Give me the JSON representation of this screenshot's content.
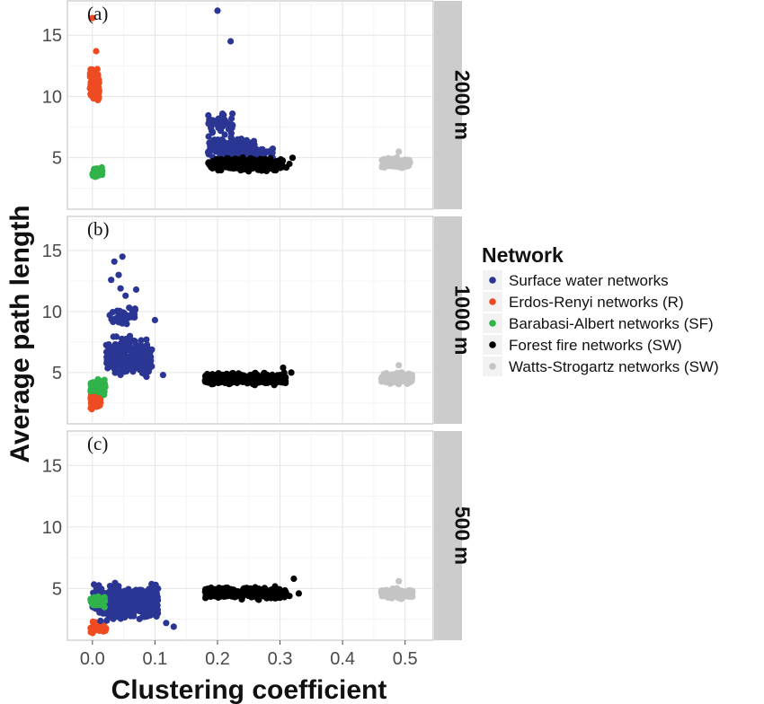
{
  "chart_data": {
    "type": "scatter",
    "xlabel": "Clustering coefficient",
    "ylabel": "Average path length",
    "xlim": [
      -0.04,
      0.545
    ],
    "ylim": [
      0.8,
      17.8
    ],
    "x_ticks": [
      "0.0",
      "0.1",
      "0.2",
      "0.3",
      "0.4",
      "0.5"
    ],
    "x_tick_values": [
      0,
      0.1,
      0.2,
      0.3,
      0.4,
      0.5
    ],
    "y_ticks": [
      "5",
      "10",
      "15"
    ],
    "y_tick_values": [
      5,
      10,
      15
    ],
    "grid": true,
    "legend": {
      "title": "Network",
      "position": "right",
      "entries": [
        {
          "label": "Surface water networks",
          "color": "#2b3694"
        },
        {
          "label": "Erdos-Renyi networks (R)",
          "color": "#ef4b23"
        },
        {
          "label": "Barabasi-Albert networks (SF)",
          "color": "#2fb34a"
        },
        {
          "label": "Forest fire networks (SW)",
          "color": "#000000"
        },
        {
          "label": "Watts-Strogartz networks (SW)",
          "color": "#c4c4c4"
        }
      ]
    },
    "panels": [
      {
        "tag": "(a)",
        "strip": "2000 m",
        "series": [
          {
            "color": "#2b3694",
            "clusters": [
              {
                "x": [
                  0.185,
                  0.26
                ],
                "y": [
                  4.8,
                  6.8
                ],
                "n": 200
              },
              {
                "x": [
                  0.185,
                  0.225
                ],
                "y": [
                  6.3,
                  9.1
                ],
                "n": 45
              },
              {
                "x": [
                  0.24,
                  0.29
                ],
                "y": [
                  4.6,
                  6.1
                ],
                "n": 40
              }
            ],
            "points": [
              [
                0.2,
                17.0
              ],
              [
                0.221,
                14.5
              ],
              [
                0.208,
                8.6
              ],
              [
                0.214,
                7.9
              ]
            ]
          },
          {
            "color": "#000000",
            "clusters": [
              {
                "x": [
                  0.185,
                  0.305
                ],
                "y": [
                  3.8,
                  5.1
                ],
                "n": 320
              }
            ],
            "points": [
              [
                0.315,
                4.5
              ],
              [
                0.32,
                5.0
              ],
              [
                0.31,
                4.2
              ]
            ]
          },
          {
            "color": "#ef4b23",
            "clusters": [
              {
                "x": [
                  -0.004,
                  0.011
                ],
                "y": [
                  8.8,
                  12.7
                ],
                "n": 90
              }
            ],
            "points": [
              [
                0.0,
                16.4
              ],
              [
                0.006,
                13.7
              ]
            ]
          },
          {
            "color": "#2fb34a",
            "clusters": [
              {
                "x": [
                  0.0,
                  0.016
                ],
                "y": [
                  3.2,
                  4.4
                ],
                "n": 55
              }
            ],
            "points": []
          },
          {
            "color": "#c4c4c4",
            "clusters": [
              {
                "x": [
                  0.463,
                  0.508
                ],
                "y": [
                  4.0,
                  5.1
                ],
                "n": 130
              }
            ],
            "points": [
              [
                0.49,
                5.5
              ]
            ]
          }
        ]
      },
      {
        "tag": "(b)",
        "strip": "1000 m",
        "series": [
          {
            "color": "#ef4b23",
            "clusters": [
              {
                "x": [
                  -0.003,
                  0.013
                ],
                "y": [
                  1.6,
                  4.4
                ],
                "n": 110
              }
            ],
            "points": []
          },
          {
            "color": "#2b3694",
            "clusters": [
              {
                "x": [
                  0.022,
                  0.095
                ],
                "y": [
                  4.0,
                  8.6
                ],
                "n": 230
              },
              {
                "x": [
                  0.025,
                  0.07
                ],
                "y": [
                  8.4,
                  11.0
                ],
                "n": 35
              }
            ],
            "points": [
              [
                0.048,
                14.5
              ],
              [
                0.035,
                14.1
              ],
              [
                0.042,
                13.0
              ],
              [
                0.03,
                12.6
              ],
              [
                0.045,
                11.9
              ],
              [
                0.053,
                11.3
              ],
              [
                0.1,
                9.3
              ],
              [
                0.113,
                4.8
              ],
              [
                0.07,
                11.8
              ]
            ]
          },
          {
            "color": "#2fb34a",
            "clusters": [
              {
                "x": [
                  -0.003,
                  0.022
                ],
                "y": [
                  3.0,
                  4.6
                ],
                "n": 70
              }
            ],
            "points": []
          },
          {
            "color": "#000000",
            "clusters": [
              {
                "x": [
                  0.18,
                  0.31
                ],
                "y": [
                  3.9,
                  5.1
                ],
                "n": 330
              }
            ],
            "points": [
              [
                0.318,
                5.0
              ],
              [
                0.305,
                5.4
              ]
            ]
          },
          {
            "color": "#c4c4c4",
            "clusters": [
              {
                "x": [
                  0.462,
                  0.512
                ],
                "y": [
                  3.9,
                  5.2
                ],
                "n": 130
              }
            ],
            "points": [
              [
                0.49,
                5.6
              ]
            ]
          }
        ]
      },
      {
        "tag": "(c)",
        "strip": "500 m",
        "series": [
          {
            "color": "#ef4b23",
            "clusters": [
              {
                "x": [
                  -0.003,
                  0.022
                ],
                "y": [
                  1.2,
                  2.5
                ],
                "n": 45
              }
            ],
            "points": []
          },
          {
            "color": "#2b3694",
            "clusters": [
              {
                "x": [
                  0.0,
                  0.105
                ],
                "y": [
                  2.0,
                  5.7
                ],
                "n": 330
              }
            ],
            "points": [
              [
                0.13,
                1.9
              ],
              [
                0.118,
                2.2
              ]
            ]
          },
          {
            "color": "#2fb34a",
            "clusters": [
              {
                "x": [
                  -0.003,
                  0.02
                ],
                "y": [
                  3.3,
                  4.6
                ],
                "n": 70
              }
            ],
            "points": []
          },
          {
            "color": "#000000",
            "clusters": [
              {
                "x": [
                  0.18,
                  0.31
                ],
                "y": [
                  4.0,
                  5.3
                ],
                "n": 330
              }
            ],
            "points": [
              [
                0.322,
                5.8
              ],
              [
                0.315,
                4.4
              ],
              [
                0.33,
                4.6
              ]
            ]
          },
          {
            "color": "#c4c4c4",
            "clusters": [
              {
                "x": [
                  0.462,
                  0.512
                ],
                "y": [
                  4.0,
                  5.1
                ],
                "n": 130
              }
            ],
            "points": [
              [
                0.49,
                5.6
              ]
            ]
          }
        ]
      }
    ]
  }
}
